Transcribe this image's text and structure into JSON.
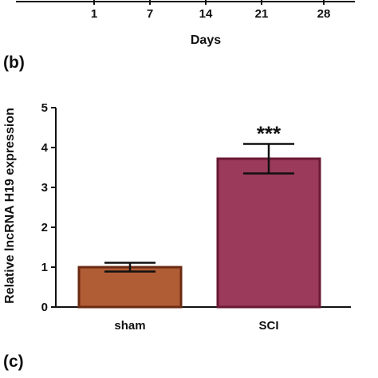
{
  "panels": {
    "b": "(b)",
    "c": "(c)"
  },
  "top_fragment": {
    "x_ticks": [
      "1",
      "7",
      "14",
      "21",
      "28"
    ],
    "xlabel": "Days"
  },
  "chart_data": {
    "type": "bar",
    "categories": [
      "sham",
      "SCI"
    ],
    "values": [
      1.0,
      3.72
    ],
    "errors": [
      0.11,
      0.37
    ],
    "colors": [
      "#b05c35",
      "#9b3a5b"
    ],
    "edge_colors": [
      "#6b2a12",
      "#6a1834"
    ],
    "annotations": [
      {
        "category": "SCI",
        "text": "***"
      }
    ],
    "xlabel": "",
    "ylabel": "Relative lncRNA H19 expression",
    "ylim": [
      0,
      5
    ],
    "yticks": [
      0,
      1,
      2,
      3,
      4,
      5
    ],
    "grid": false
  }
}
